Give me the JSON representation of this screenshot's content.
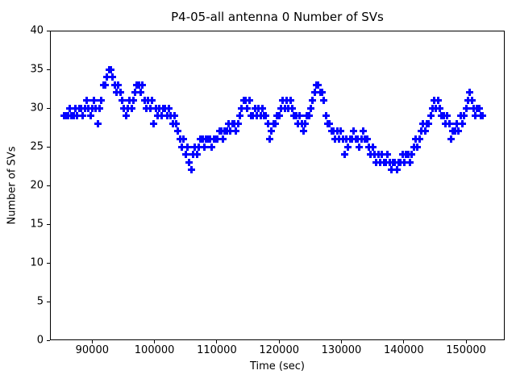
{
  "title": "P4-05-all antenna 0 Number of SVs",
  "chart_data": {
    "type": "scatter",
    "title": "P4-05-all antenna 0 Number of SVs",
    "xlabel": "Time (sec)",
    "ylabel": "Number of SVs",
    "marker": "plus",
    "marker_color": "#0000ff",
    "background_color": "#ffffff",
    "axis_color": "#000000",
    "grid": false,
    "legend": "none",
    "xlim": [
      83230,
      156200
    ],
    "ylim": [
      0,
      40
    ],
    "xticks": [
      90000,
      100000,
      110000,
      120000,
      130000,
      140000,
      150000
    ],
    "yticks": [
      0,
      5,
      10,
      15,
      20,
      25,
      30,
      35,
      40
    ],
    "points": [
      [
        85500,
        29
      ],
      [
        85800,
        29
      ],
      [
        86100,
        29
      ],
      [
        86400,
        30
      ],
      [
        86700,
        29
      ],
      [
        87000,
        29
      ],
      [
        87300,
        30
      ],
      [
        87600,
        29
      ],
      [
        87900,
        30
      ],
      [
        88200,
        30
      ],
      [
        88500,
        29
      ],
      [
        88800,
        30
      ],
      [
        89100,
        31
      ],
      [
        89400,
        30
      ],
      [
        89700,
        29
      ],
      [
        90000,
        30
      ],
      [
        90300,
        31
      ],
      [
        90600,
        30
      ],
      [
        90900,
        28
      ],
      [
        91200,
        30
      ],
      [
        91500,
        31
      ],
      [
        91800,
        33
      ],
      [
        92100,
        33
      ],
      [
        92400,
        34
      ],
      [
        92700,
        35
      ],
      [
        93000,
        35
      ],
      [
        93300,
        34
      ],
      [
        93600,
        33
      ],
      [
        93900,
        32
      ],
      [
        94200,
        33
      ],
      [
        94500,
        32
      ],
      [
        94800,
        31
      ],
      [
        95100,
        30
      ],
      [
        95400,
        29
      ],
      [
        95700,
        30
      ],
      [
        96000,
        31
      ],
      [
        96300,
        30
      ],
      [
        96600,
        31
      ],
      [
        96900,
        32
      ],
      [
        97200,
        33
      ],
      [
        97500,
        33
      ],
      [
        97800,
        32
      ],
      [
        98100,
        33
      ],
      [
        98400,
        31
      ],
      [
        98700,
        30
      ],
      [
        99000,
        31
      ],
      [
        99300,
        30
      ],
      [
        99600,
        31
      ],
      [
        99900,
        28
      ],
      [
        100200,
        30
      ],
      [
        100500,
        29
      ],
      [
        100800,
        30
      ],
      [
        101100,
        29
      ],
      [
        101400,
        30
      ],
      [
        101700,
        30
      ],
      [
        102000,
        29
      ],
      [
        102300,
        30
      ],
      [
        102600,
        29
      ],
      [
        102900,
        28
      ],
      [
        103200,
        29
      ],
      [
        103500,
        28
      ],
      [
        103800,
        27
      ],
      [
        104100,
        26
      ],
      [
        104400,
        25
      ],
      [
        104700,
        26
      ],
      [
        105000,
        24
      ],
      [
        105300,
        25
      ],
      [
        105600,
        23
      ],
      [
        105900,
        22
      ],
      [
        106200,
        24
      ],
      [
        106500,
        25
      ],
      [
        106800,
        24
      ],
      [
        107100,
        25
      ],
      [
        107400,
        26
      ],
      [
        107700,
        26
      ],
      [
        108000,
        25
      ],
      [
        108300,
        26
      ],
      [
        108600,
        26
      ],
      [
        108900,
        26
      ],
      [
        109200,
        25
      ],
      [
        109500,
        26
      ],
      [
        109800,
        26
      ],
      [
        110100,
        26
      ],
      [
        110400,
        27
      ],
      [
        110700,
        27
      ],
      [
        111000,
        26
      ],
      [
        111300,
        27
      ],
      [
        111600,
        27
      ],
      [
        111900,
        28
      ],
      [
        112200,
        27
      ],
      [
        112500,
        28
      ],
      [
        112800,
        28
      ],
      [
        113100,
        27
      ],
      [
        113400,
        28
      ],
      [
        113700,
        29
      ],
      [
        114000,
        30
      ],
      [
        114300,
        31
      ],
      [
        114600,
        31
      ],
      [
        114900,
        30
      ],
      [
        115200,
        31
      ],
      [
        115500,
        29
      ],
      [
        115800,
        29
      ],
      [
        116100,
        30
      ],
      [
        116400,
        29
      ],
      [
        116700,
        30
      ],
      [
        117000,
        29
      ],
      [
        117300,
        30
      ],
      [
        117600,
        29
      ],
      [
        117900,
        29
      ],
      [
        118200,
        28
      ],
      [
        118500,
        26
      ],
      [
        118800,
        27
      ],
      [
        119100,
        28
      ],
      [
        119400,
        28
      ],
      [
        119700,
        29
      ],
      [
        120000,
        29
      ],
      [
        120300,
        30
      ],
      [
        120600,
        31
      ],
      [
        120900,
        30
      ],
      [
        121200,
        31
      ],
      [
        121500,
        30
      ],
      [
        121800,
        31
      ],
      [
        122100,
        30
      ],
      [
        122400,
        29
      ],
      [
        122700,
        29
      ],
      [
        123000,
        28
      ],
      [
        123300,
        29
      ],
      [
        123600,
        28
      ],
      [
        123900,
        27
      ],
      [
        124200,
        28
      ],
      [
        124500,
        29
      ],
      [
        124800,
        29
      ],
      [
        125100,
        30
      ],
      [
        125400,
        31
      ],
      [
        125700,
        32
      ],
      [
        126000,
        33
      ],
      [
        126300,
        33
      ],
      [
        126600,
        32
      ],
      [
        126900,
        32
      ],
      [
        127200,
        31
      ],
      [
        127500,
        29
      ],
      [
        127800,
        28
      ],
      [
        128100,
        28
      ],
      [
        128400,
        27
      ],
      [
        128700,
        27
      ],
      [
        129000,
        26
      ],
      [
        129300,
        27
      ],
      [
        129600,
        26
      ],
      [
        129900,
        27
      ],
      [
        130200,
        26
      ],
      [
        130500,
        24
      ],
      [
        130800,
        26
      ],
      [
        131100,
        25
      ],
      [
        131400,
        26
      ],
      [
        131700,
        26
      ],
      [
        132000,
        27
      ],
      [
        132300,
        26
      ],
      [
        132600,
        26
      ],
      [
        132900,
        25
      ],
      [
        133200,
        26
      ],
      [
        133500,
        27
      ],
      [
        133800,
        26
      ],
      [
        134100,
        26
      ],
      [
        134400,
        25
      ],
      [
        134700,
        24
      ],
      [
        135000,
        25
      ],
      [
        135300,
        24
      ],
      [
        135600,
        23
      ],
      [
        135900,
        24
      ],
      [
        136200,
        23
      ],
      [
        136500,
        24
      ],
      [
        136800,
        23
      ],
      [
        137100,
        23
      ],
      [
        137400,
        24
      ],
      [
        137700,
        23
      ],
      [
        138000,
        22
      ],
      [
        138300,
        23
      ],
      [
        138600,
        23
      ],
      [
        138900,
        22
      ],
      [
        139200,
        23
      ],
      [
        139500,
        23
      ],
      [
        139800,
        24
      ],
      [
        140100,
        23
      ],
      [
        140400,
        24
      ],
      [
        140700,
        24
      ],
      [
        141000,
        23
      ],
      [
        141300,
        24
      ],
      [
        141600,
        25
      ],
      [
        141900,
        26
      ],
      [
        142200,
        25
      ],
      [
        142500,
        26
      ],
      [
        142800,
        27
      ],
      [
        143100,
        28
      ],
      [
        143400,
        27
      ],
      [
        143700,
        28
      ],
      [
        144000,
        28
      ],
      [
        144300,
        29
      ],
      [
        144600,
        30
      ],
      [
        144900,
        31
      ],
      [
        145200,
        30
      ],
      [
        145500,
        31
      ],
      [
        145800,
        30
      ],
      [
        146100,
        29
      ],
      [
        146400,
        29
      ],
      [
        146700,
        28
      ],
      [
        147000,
        29
      ],
      [
        147300,
        28
      ],
      [
        147600,
        26
      ],
      [
        147900,
        27
      ],
      [
        148200,
        27
      ],
      [
        148500,
        28
      ],
      [
        148800,
        27
      ],
      [
        149100,
        29
      ],
      [
        149400,
        28
      ],
      [
        149700,
        29
      ],
      [
        150000,
        30
      ],
      [
        150300,
        31
      ],
      [
        150600,
        32
      ],
      [
        150900,
        31
      ],
      [
        151200,
        30
      ],
      [
        151500,
        29
      ],
      [
        151800,
        30
      ],
      [
        152100,
        30
      ],
      [
        152400,
        29
      ],
      [
        152700,
        29
      ]
    ]
  }
}
